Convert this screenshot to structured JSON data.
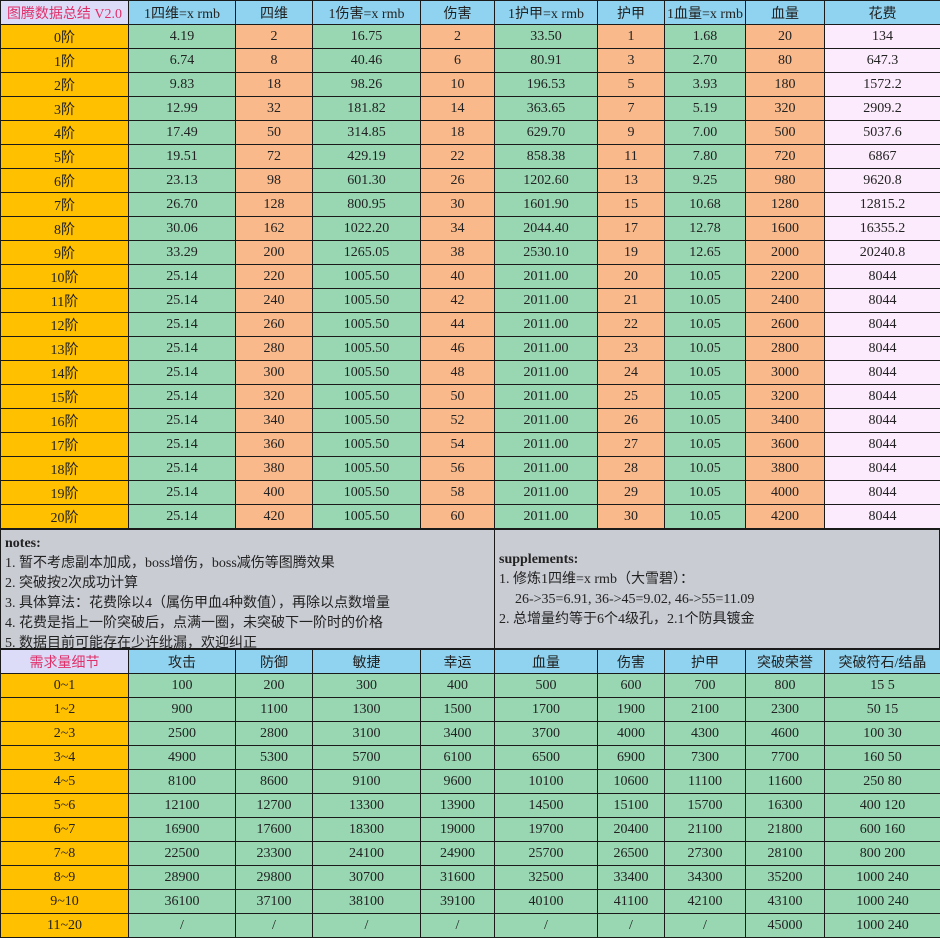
{
  "colors": {
    "header": "#8fd3f0",
    "corner": "#dcdcf8",
    "corner_text": "#e0306a",
    "tier": "#ffc000",
    "green": "#98d7b2",
    "orange": "#f9b98a",
    "pink": "#fcebfc",
    "notes": "#c9ccd3"
  },
  "summary": {
    "headers": [
      "图腾数据总结 V2.0",
      "1四维=x rmb",
      "四维",
      "1伤害=x rmb",
      "伤害",
      "1护甲=x rmb",
      "护甲",
      "1血量=x rmb",
      "血量",
      "花费"
    ],
    "rows": [
      [
        "0阶",
        "4.19",
        "2",
        "16.75",
        "2",
        "33.50",
        "1",
        "1.68",
        "20",
        "134"
      ],
      [
        "1阶",
        "6.74",
        "8",
        "40.46",
        "6",
        "80.91",
        "3",
        "2.70",
        "80",
        "647.3"
      ],
      [
        "2阶",
        "9.83",
        "18",
        "98.26",
        "10",
        "196.53",
        "5",
        "3.93",
        "180",
        "1572.2"
      ],
      [
        "3阶",
        "12.99",
        "32",
        "181.82",
        "14",
        "363.65",
        "7",
        "5.19",
        "320",
        "2909.2"
      ],
      [
        "4阶",
        "17.49",
        "50",
        "314.85",
        "18",
        "629.70",
        "9",
        "7.00",
        "500",
        "5037.6"
      ],
      [
        "5阶",
        "19.51",
        "72",
        "429.19",
        "22",
        "858.38",
        "11",
        "7.80",
        "720",
        "6867"
      ],
      [
        "6阶",
        "23.13",
        "98",
        "601.30",
        "26",
        "1202.60",
        "13",
        "9.25",
        "980",
        "9620.8"
      ],
      [
        "7阶",
        "26.70",
        "128",
        "800.95",
        "30",
        "1601.90",
        "15",
        "10.68",
        "1280",
        "12815.2"
      ],
      [
        "8阶",
        "30.06",
        "162",
        "1022.20",
        "34",
        "2044.40",
        "17",
        "12.78",
        "1600",
        "16355.2"
      ],
      [
        "9阶",
        "33.29",
        "200",
        "1265.05",
        "38",
        "2530.10",
        "19",
        "12.65",
        "2000",
        "20240.8"
      ],
      [
        "10阶",
        "25.14",
        "220",
        "1005.50",
        "40",
        "2011.00",
        "20",
        "10.05",
        "2200",
        "8044"
      ],
      [
        "11阶",
        "25.14",
        "240",
        "1005.50",
        "42",
        "2011.00",
        "21",
        "10.05",
        "2400",
        "8044"
      ],
      [
        "12阶",
        "25.14",
        "260",
        "1005.50",
        "44",
        "2011.00",
        "22",
        "10.05",
        "2600",
        "8044"
      ],
      [
        "13阶",
        "25.14",
        "280",
        "1005.50",
        "46",
        "2011.00",
        "23",
        "10.05",
        "2800",
        "8044"
      ],
      [
        "14阶",
        "25.14",
        "300",
        "1005.50",
        "48",
        "2011.00",
        "24",
        "10.05",
        "3000",
        "8044"
      ],
      [
        "15阶",
        "25.14",
        "320",
        "1005.50",
        "50",
        "2011.00",
        "25",
        "10.05",
        "3200",
        "8044"
      ],
      [
        "16阶",
        "25.14",
        "340",
        "1005.50",
        "52",
        "2011.00",
        "26",
        "10.05",
        "3400",
        "8044"
      ],
      [
        "17阶",
        "25.14",
        "360",
        "1005.50",
        "54",
        "2011.00",
        "27",
        "10.05",
        "3600",
        "8044"
      ],
      [
        "18阶",
        "25.14",
        "380",
        "1005.50",
        "56",
        "2011.00",
        "28",
        "10.05",
        "3800",
        "8044"
      ],
      [
        "19阶",
        "25.14",
        "400",
        "1005.50",
        "58",
        "2011.00",
        "29",
        "10.05",
        "4000",
        "8044"
      ],
      [
        "20阶",
        "25.14",
        "420",
        "1005.50",
        "60",
        "2011.00",
        "30",
        "10.05",
        "4200",
        "8044"
      ]
    ]
  },
  "notes": {
    "title": "notes:",
    "items": [
      "1. 暂不考虑副本加成，boss增伤，boss减伤等图腾效果",
      "2. 突破按2次成功计算",
      "3. 具体算法：花费除以4（属伤甲血4种数值），再除以点数增量",
      "4. 花费是指上一阶突破后，点满一圈，未突破下一阶时的价格",
      "5. 数据目前可能存在少许纰漏，欢迎纠正"
    ]
  },
  "supplements": {
    "title": "supplements:",
    "items": [
      "1. 修炼1四维=x rmb（大雪碧）：",
      "26->35=6.91, 36->45=9.02, 46->55=11.09",
      "2. 总增量约等于6个4级孔，2.1个防具镀金"
    ]
  },
  "requirements": {
    "headers": [
      "需求量细节",
      "攻击",
      "防御",
      "敏捷",
      "幸运",
      "血量",
      "伤害",
      "护甲",
      "突破荣誉",
      "突破符石/结晶"
    ],
    "rows": [
      [
        "0~1",
        "100",
        "200",
        "300",
        "400",
        "500",
        "600",
        "700",
        "800",
        "15 5"
      ],
      [
        "1~2",
        "900",
        "1100",
        "1300",
        "1500",
        "1700",
        "1900",
        "2100",
        "2300",
        "50 15"
      ],
      [
        "2~3",
        "2500",
        "2800",
        "3100",
        "3400",
        "3700",
        "4000",
        "4300",
        "4600",
        "100 30"
      ],
      [
        "3~4",
        "4900",
        "5300",
        "5700",
        "6100",
        "6500",
        "6900",
        "7300",
        "7700",
        "160 50"
      ],
      [
        "4~5",
        "8100",
        "8600",
        "9100",
        "9600",
        "10100",
        "10600",
        "11100",
        "11600",
        "250 80"
      ],
      [
        "5~6",
        "12100",
        "12700",
        "13300",
        "13900",
        "14500",
        "15100",
        "15700",
        "16300",
        "400 120"
      ],
      [
        "6~7",
        "16900",
        "17600",
        "18300",
        "19000",
        "19700",
        "20400",
        "21100",
        "21800",
        "600 160"
      ],
      [
        "7~8",
        "22500",
        "23300",
        "24100",
        "24900",
        "25700",
        "26500",
        "27300",
        "28100",
        "800 200"
      ],
      [
        "8~9",
        "28900",
        "29800",
        "30700",
        "31600",
        "32500",
        "33400",
        "34300",
        "35200",
        "1000 240"
      ],
      [
        "9~10",
        "36100",
        "37100",
        "38100",
        "39100",
        "40100",
        "41100",
        "42100",
        "43100",
        "1000 240"
      ],
      [
        "11~20",
        "/",
        "/",
        "/",
        "/",
        "/",
        "/",
        "/",
        "45000",
        "1000 240"
      ]
    ]
  }
}
